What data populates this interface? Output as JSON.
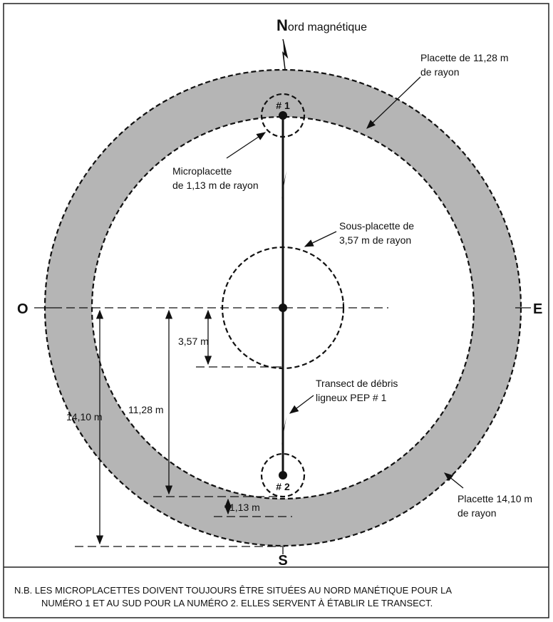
{
  "north": {
    "initial": "N",
    "rest": "ord magnétique"
  },
  "compass": {
    "west": "O",
    "east": "E",
    "south": "S"
  },
  "micro_labels": [
    "# 1",
    "# 2"
  ],
  "callouts": {
    "plot_11": [
      "Placette de 11,28 m",
      "de rayon"
    ],
    "micro": [
      "Microplacette",
      "de 1,13 m de rayon"
    ],
    "subplot": [
      "Sous-placette de",
      "3,57 m de rayon"
    ],
    "transect": [
      "Transect de débris",
      "ligneux PEP # 1"
    ],
    "plot_14": [
      "Placette 14,10 m",
      "de rayon"
    ]
  },
  "dimensions": [
    "3,57 m",
    "11,28 m",
    "14,10 m",
    "1,13 m"
  ],
  "note": [
    "N.B. LES MICROPLACETTES DOIVENT TOUJOURS ÊTRE SITUÉES AU NORD MANÉTIQUE POUR LA",
    "NUMÉRO 1 ET AU SUD POUR LA NUMÉRO 2. ELLES SERVENT À ÉTABLIR LE TRANSECT."
  ]
}
